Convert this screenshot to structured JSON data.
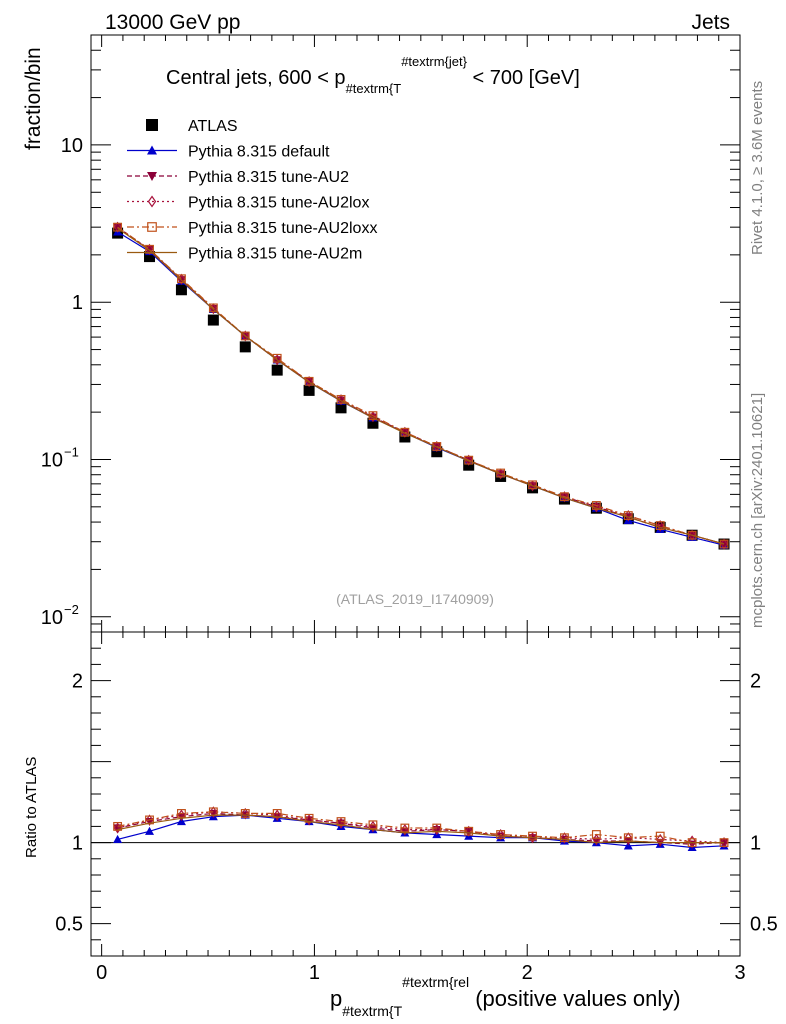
{
  "header": {
    "energy_label": "13000 GeV pp",
    "category_label": "Jets"
  },
  "main_plot": {
    "title_prefix": "Central jets, 600 < p",
    "title_sub": "#textrm{T",
    "title_sup": "#textrm{jet}",
    "title_suffix": " < 700 [GeV]",
    "ylabel": "fraction/bin",
    "watermark": "(ATLAS_2019_I1740909)"
  },
  "ratio_plot": {
    "ylabel": "Ratio to ATLAS"
  },
  "xaxis": {
    "label_main": "p",
    "label_sub": "#textrm{T",
    "label_sup": "#textrm{rel",
    "label_suffix": " (positive values only)"
  },
  "side_text": {
    "rivet": "Rivet 4.1.0, ≥ 3.6M events",
    "mcplots": "mcplots.cern.ch [arXiv:2401.10621]"
  },
  "legend": [
    {
      "label": "ATLAS",
      "color": "#000000",
      "marker": "square-filled"
    },
    {
      "label": "Pythia 8.315 default",
      "color": "#0000cc",
      "marker": "triangle-up-filled"
    },
    {
      "label": "Pythia 8.315 tune-AU2",
      "color": "#8b0038",
      "marker": "triangle-down-filled"
    },
    {
      "label": "Pythia 8.315 tune-AU2lox",
      "color": "#a8123c",
      "marker": "diamond-open"
    },
    {
      "label": "Pythia 8.315 tune-AU2loxx",
      "color": "#c0501a",
      "marker": "square-open"
    },
    {
      "label": "Pythia 8.315 tune-AU2m",
      "color": "#9a5a10",
      "marker": "line"
    }
  ],
  "chart_data": {
    "type": "line",
    "title": "Central jets, 600 < p_T^jet < 700 [GeV]",
    "xlabel": "p_T^rel (positive values only)",
    "ylabel": "fraction/bin",
    "xlim": [
      -0.05,
      3.0
    ],
    "ylim": [
      0.008,
      50
    ],
    "yscale": "log",
    "ratio_ylim": [
      0.3,
      2.3
    ],
    "x_ticks": [
      {
        "v": 0,
        "label": "0"
      },
      {
        "v": 1,
        "label": "1"
      },
      {
        "v": 2,
        "label": "2"
      },
      {
        "v": 3,
        "label": "3"
      }
    ],
    "y_ticks": [
      {
        "v": 10,
        "label": "10",
        "exp": ""
      },
      {
        "v": 1,
        "label": "1",
        "exp": ""
      },
      {
        "v": 0.1,
        "label": "10",
        "exp": "−1"
      },
      {
        "v": 0.01,
        "label": "10",
        "exp": "−2"
      }
    ],
    "ratio_y_ticks": [
      {
        "v": 0.5,
        "label": "0.5"
      },
      {
        "v": 1,
        "label": "1"
      },
      {
        "v": 2,
        "label": "2"
      }
    ],
    "x": [
      0.075,
      0.225,
      0.375,
      0.525,
      0.675,
      0.825,
      0.975,
      1.125,
      1.275,
      1.425,
      1.575,
      1.725,
      1.875,
      2.025,
      2.175,
      2.325,
      2.475,
      2.625,
      2.775,
      2.925
    ],
    "series": [
      {
        "name": "ATLAS",
        "values": [
          2.75,
          1.95,
          1.2,
          0.77,
          0.52,
          0.37,
          0.275,
          0.213,
          0.17,
          0.139,
          0.112,
          0.092,
          0.078,
          0.066,
          0.056,
          0.049,
          0.042,
          0.037,
          0.033,
          0.029
        ]
      },
      {
        "name": "Pythia 8.315 default",
        "values": [
          2.8,
          2.1,
          1.36,
          0.9,
          0.61,
          0.43,
          0.31,
          0.235,
          0.184,
          0.148,
          0.119,
          0.098,
          0.081,
          0.068,
          0.057,
          0.049,
          0.041,
          0.036,
          0.032,
          0.0285
        ]
      },
      {
        "name": "Pythia 8.315 tune-AU2",
        "values": [
          3.0,
          2.16,
          1.39,
          0.91,
          0.61,
          0.43,
          0.315,
          0.238,
          0.186,
          0.149,
          0.121,
          0.099,
          0.081,
          0.068,
          0.058,
          0.05,
          0.043,
          0.037,
          0.033,
          0.029
        ]
      },
      {
        "name": "Pythia 8.315 tune-AU2lox",
        "values": [
          3.0,
          2.17,
          1.4,
          0.91,
          0.61,
          0.43,
          0.313,
          0.24,
          0.187,
          0.149,
          0.121,
          0.099,
          0.081,
          0.068,
          0.058,
          0.05,
          0.044,
          0.038,
          0.033,
          0.029
        ]
      },
      {
        "name": "Pythia 8.315 tune-AU2loxx",
        "values": [
          3.0,
          2.17,
          1.41,
          0.92,
          0.61,
          0.44,
          0.314,
          0.241,
          0.19,
          0.149,
          0.121,
          0.099,
          0.082,
          0.069,
          0.058,
          0.051,
          0.044,
          0.038,
          0.033,
          0.029
        ]
      },
      {
        "name": "Pythia 8.315 tune-AU2m",
        "values": [
          2.95,
          2.14,
          1.38,
          0.9,
          0.61,
          0.43,
          0.31,
          0.236,
          0.184,
          0.147,
          0.12,
          0.098,
          0.081,
          0.068,
          0.057,
          0.049,
          0.043,
          0.037,
          0.033,
          0.029
        ]
      }
    ],
    "ratio_series": [
      {
        "name": "Pythia 8.315 default",
        "values": [
          1.02,
          1.07,
          1.13,
          1.16,
          1.17,
          1.15,
          1.13,
          1.1,
          1.08,
          1.06,
          1.05,
          1.04,
          1.03,
          1.03,
          1.01,
          1.0,
          0.98,
          0.99,
          0.97,
          0.98
        ]
      },
      {
        "name": "Pythia 8.315 tune-AU2",
        "values": [
          1.09,
          1.13,
          1.16,
          1.18,
          1.17,
          1.16,
          1.14,
          1.12,
          1.09,
          1.07,
          1.08,
          1.07,
          1.04,
          1.03,
          1.02,
          1.01,
          1.01,
          1.0,
          0.99,
          1.0
        ]
      },
      {
        "name": "Pythia 8.315 tune-AU2lox",
        "values": [
          1.09,
          1.14,
          1.17,
          1.19,
          1.18,
          1.17,
          1.14,
          1.12,
          1.1,
          1.08,
          1.08,
          1.07,
          1.05,
          1.03,
          1.03,
          1.02,
          1.03,
          1.02,
          1.01,
          1.0
        ]
      },
      {
        "name": "Pythia 8.315 tune-AU2loxx",
        "values": [
          1.1,
          1.14,
          1.18,
          1.19,
          1.18,
          1.18,
          1.15,
          1.13,
          1.11,
          1.09,
          1.09,
          1.07,
          1.05,
          1.04,
          1.03,
          1.05,
          1.03,
          1.04,
          1.0,
          1.0
        ]
      },
      {
        "name": "Pythia 8.315 tune-AU2m",
        "values": [
          1.08,
          1.12,
          1.15,
          1.17,
          1.17,
          1.16,
          1.13,
          1.11,
          1.08,
          1.06,
          1.07,
          1.06,
          1.04,
          1.03,
          1.02,
          1.0,
          1.01,
          1.0,
          1.0,
          1.0
        ]
      }
    ]
  }
}
